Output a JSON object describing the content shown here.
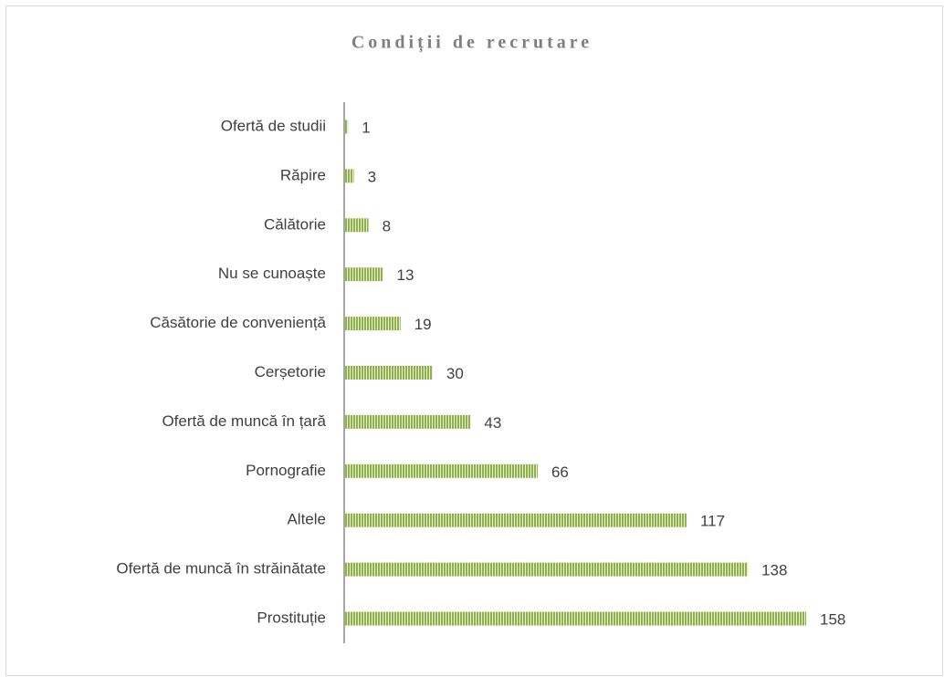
{
  "chart_data": {
    "type": "bar",
    "orientation": "horizontal",
    "title": "Condiții de recrutare",
    "categories": [
      "Ofertă de studii",
      "Răpire",
      "Călătorie",
      "Nu se cunoaște",
      "Căsătorie de conveniență",
      "Cerșetorie",
      "Ofertă de muncă în țară",
      "Pornografie",
      "Altele",
      "Ofertă de muncă în străinătate",
      "Prostituție"
    ],
    "values": [
      1,
      3,
      8,
      13,
      19,
      30,
      43,
      66,
      117,
      138,
      158
    ],
    "color": "#8fb34a"
  }
}
